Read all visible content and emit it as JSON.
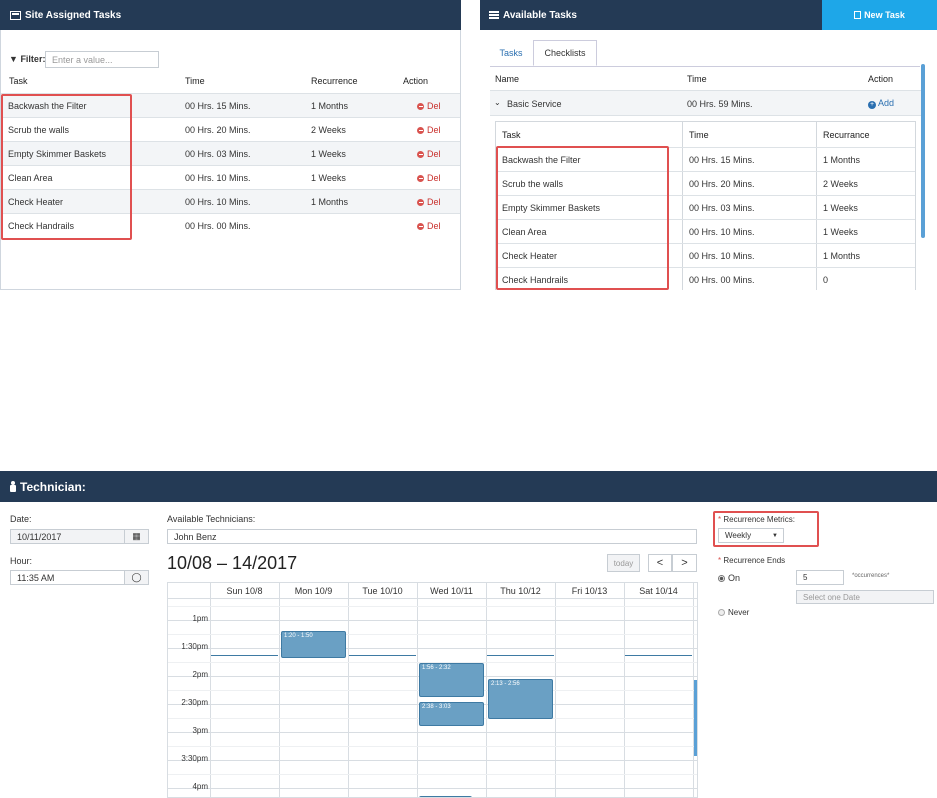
{
  "site_tasks": {
    "title": "Site Assigned Tasks",
    "filter_label": "Filter:",
    "filter_placeholder": "Enter a value...",
    "headers": [
      "Task",
      "Time",
      "Recurrence",
      "Action"
    ],
    "rows": [
      {
        "task": "Backwash the Filter",
        "time": "00 Hrs. 15 Mins.",
        "recurrence": "1 Months",
        "action": "Del"
      },
      {
        "task": "Scrub the walls",
        "time": "00 Hrs. 20 Mins.",
        "recurrence": "2 Weeks",
        "action": "Del"
      },
      {
        "task": "Empty Skimmer Baskets",
        "time": "00 Hrs. 03 Mins.",
        "recurrence": "1 Weeks",
        "action": "Del"
      },
      {
        "task": "Clean Area",
        "time": "00 Hrs. 10 Mins.",
        "recurrence": "1 Weeks",
        "action": "Del"
      },
      {
        "task": "Check Heater",
        "time": "00 Hrs. 10 Mins.",
        "recurrence": "1 Months",
        "action": "Del"
      },
      {
        "task": "Check Handrails",
        "time": "00 Hrs. 00 Mins.",
        "recurrence": "",
        "action": "Del"
      }
    ]
  },
  "available_tasks": {
    "title": "Available Tasks",
    "new_task_label": "New Task",
    "tabs": [
      "Tasks",
      "Checklists"
    ],
    "active_tab": "Checklists",
    "headers": [
      "Name",
      "Time",
      "Action"
    ],
    "checklist": {
      "name": "Basic Service",
      "time": "00 Hrs. 59 Mins.",
      "action": "Add"
    },
    "sub_headers": [
      "Task",
      "Time",
      "Recurrance"
    ],
    "sub_rows": [
      {
        "task": "Backwash the Filter",
        "time": "00 Hrs. 15 Mins.",
        "recurrence": "1 Months"
      },
      {
        "task": "Scrub the walls",
        "time": "00 Hrs. 20 Mins.",
        "recurrence": "2 Weeks"
      },
      {
        "task": "Empty Skimmer Baskets",
        "time": "00 Hrs. 03 Mins.",
        "recurrence": "1 Weeks"
      },
      {
        "task": "Clean Area",
        "time": "00 Hrs. 10 Mins.",
        "recurrence": "1 Weeks"
      },
      {
        "task": "Check Heater",
        "time": "00 Hrs. 10 Mins.",
        "recurrence": "1 Months"
      },
      {
        "task": "Check Handrails",
        "time": "00 Hrs. 00 Mins.",
        "recurrence": "0"
      }
    ]
  },
  "technician": {
    "title": "Technician:",
    "date_label": "Date:",
    "date_value": "10/11/2017",
    "hour_label": "Hour:",
    "hour_value": "11:35 AM",
    "available_label": "Available Technicians:",
    "technician_value": "John Benz",
    "calendar": {
      "range_title": "10/08 – 14/2017",
      "today_label": "today",
      "prev_label": "<",
      "next_label": ">",
      "days": [
        "Sun 10/8",
        "Mon 10/9",
        "Tue 10/10",
        "Wed 10/11",
        "Thu 10/12",
        "Fri 10/13",
        "Sat 10/14"
      ],
      "times": [
        "1pm",
        "1:30pm",
        "2pm",
        "2:30pm",
        "3pm",
        "3:30pm",
        "4pm"
      ],
      "events": [
        {
          "day": 1,
          "label": "1:20 - 1:50"
        },
        {
          "day": 3,
          "label": "1:56 - 2:32"
        },
        {
          "day": 3,
          "label": "2:38 - 3:03"
        },
        {
          "day": 4,
          "label": "2:13 - 2:56"
        }
      ]
    },
    "recurrence_metrics_label": "Recurrence Metrics:",
    "recurrence_metrics_value": "Weekly",
    "recurrence_ends_label": "Recurrence Ends",
    "ends_on_label": "On",
    "occurrences_value": "5",
    "occurrences_label": "*occurrences*",
    "select_date_placeholder": "Select one Date",
    "ends_never_label": "Never",
    "required_mark": "*"
  },
  "colors": {
    "header_bg": "#243a55",
    "accent": "#1ea7e8",
    "highlight": "#e05050",
    "event": "#6aa0c4"
  }
}
